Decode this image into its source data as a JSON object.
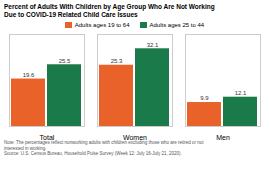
{
  "chart_data": {
    "type": "bar",
    "title": "Percent of Adults With Children by Age Group Who Are Not Working\nDue to COVID-19 Related Child Care Issues",
    "categories": [
      "Total",
      "Women",
      "Men"
    ],
    "series": [
      {
        "name": "Adults ages 19 to 64",
        "color": "#E8622A",
        "values": [
          19.6,
          25.3,
          9.9
        ]
      },
      {
        "name": "Adults ages 25 to 44",
        "color": "#1A7A4A",
        "values": [
          25.5,
          32.1,
          12.1
        ]
      }
    ],
    "ylim": [
      0,
      38
    ],
    "grid": false,
    "legend": "top",
    "data_labels": true,
    "tick_labels": "x",
    "annotations": [
      "Note: The percentages reflect nonworking adults with children excluding those who are retired or not\ninterested in working.\nSource: U.S. Census Bureau, Household Pulse Survey (Week 12: July 16-July 21, 2020)."
    ]
  }
}
